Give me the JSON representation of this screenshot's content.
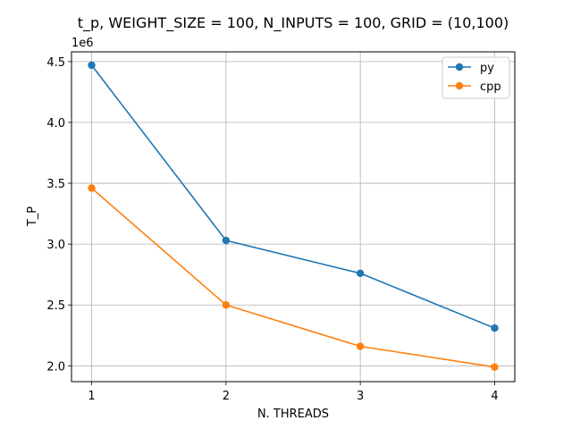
{
  "chart_data": {
    "type": "line",
    "title": "t_p, WEIGHT_SIZE = 100, N_INPUTS = 100, GRID = (10,100)",
    "xlabel": "N. THREADS",
    "ylabel": "T_P",
    "y_offset_label": "1e6",
    "x": [
      1,
      2,
      3,
      4
    ],
    "xticks": [
      "1",
      "2",
      "3",
      "4"
    ],
    "xlim": [
      0.85,
      4.15
    ],
    "ylim": [
      1.87,
      4.58
    ],
    "yticks": [
      "2.0",
      "2.5",
      "3.0",
      "3.5",
      "4.0",
      "4.5"
    ],
    "ytick_values": [
      2.0,
      2.5,
      3.0,
      3.5,
      4.0,
      4.5
    ],
    "grid": true,
    "legend_position": "top-right",
    "series": [
      {
        "name": "py",
        "color": "#1f77b4",
        "values": [
          4.47,
          3.03,
          2.76,
          2.31
        ]
      },
      {
        "name": "cpp",
        "color": "#ff7f0e",
        "values": [
          3.46,
          2.5,
          2.16,
          1.99
        ]
      }
    ]
  }
}
